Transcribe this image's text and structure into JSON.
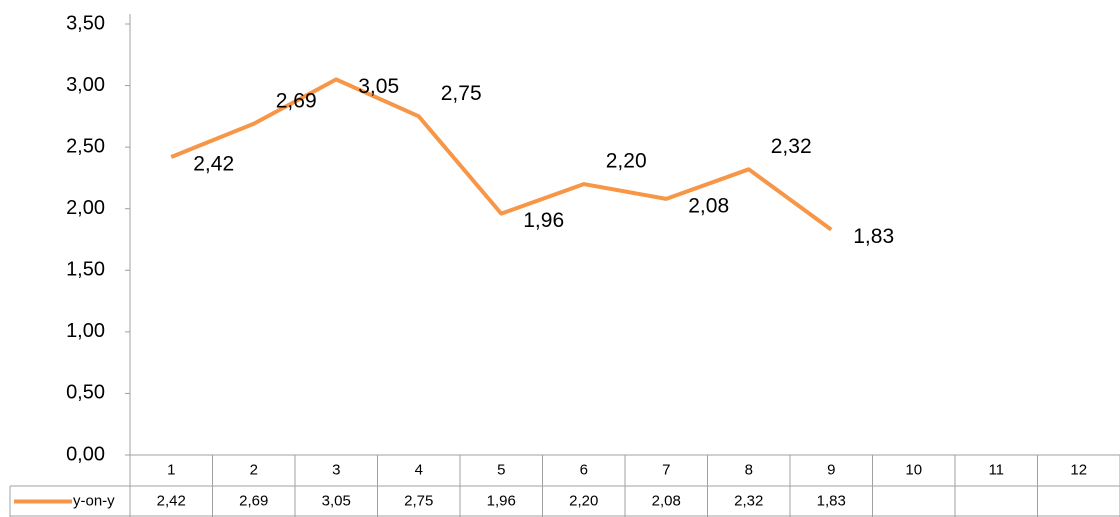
{
  "chart_data": {
    "type": "line",
    "categories": [
      "1",
      "2",
      "3",
      "4",
      "5",
      "6",
      "7",
      "8",
      "9",
      "10",
      "11",
      "12"
    ],
    "series": [
      {
        "name": "y-on-y",
        "color": "#f79646",
        "values": [
          2.42,
          2.69,
          3.05,
          2.75,
          1.96,
          2.2,
          2.08,
          2.32,
          1.83,
          null,
          null,
          null
        ],
        "value_labels": [
          "2,42",
          "2,69",
          "3,05",
          "2,75",
          "1,96",
          "2,20",
          "2,08",
          "2,32",
          "1,83",
          null,
          null,
          null
        ]
      }
    ],
    "ylim": [
      0,
      3.5
    ],
    "yticks": [
      {
        "value": 0,
        "label": "0,00"
      },
      {
        "value": 0.5,
        "label": "0,50"
      },
      {
        "value": 1,
        "label": "1,00"
      },
      {
        "value": 1.5,
        "label": "1,50"
      },
      {
        "value": 2,
        "label": "2,00"
      },
      {
        "value": 2.5,
        "label": "2,50"
      },
      {
        "value": 3,
        "label": "3,00"
      },
      {
        "value": 3.5,
        "label": "3,50"
      }
    ],
    "grid": false,
    "data_table": true
  }
}
